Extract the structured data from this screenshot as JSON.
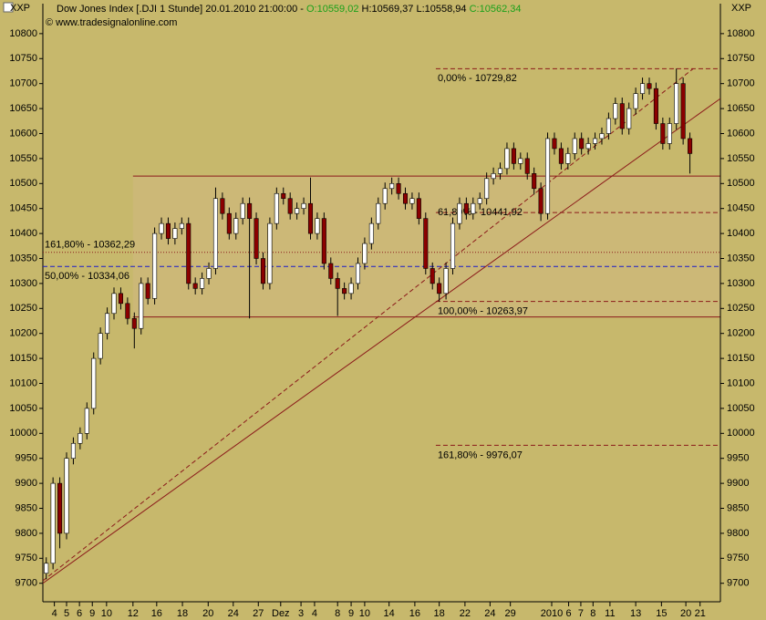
{
  "chart_data": {
    "type": "candlestick",
    "title": "Dow Jones Index [.DJI  1 Stunde] 20.01.2010 21:00:00 -",
    "header_open": "O:10559,02",
    "header_high_low": "H:10569,37 L:10558,94",
    "header_close": "C:10562,34",
    "copyright": "© www.tradesignalonline.com",
    "axis_unit": "XXP",
    "up_color": "#ffffff",
    "down_color": "#8b0000",
    "x": [
      0,
      1,
      2,
      3,
      4,
      5,
      6,
      7,
      8,
      9,
      10,
      11,
      12,
      13,
      14,
      15,
      16,
      17,
      18,
      19,
      20,
      21,
      22,
      23,
      24,
      25,
      26,
      27,
      28,
      29,
      30,
      31,
      32,
      33,
      34,
      35,
      36,
      37,
      38,
      39,
      40,
      41,
      42,
      43,
      44,
      45,
      46,
      47,
      48,
      49,
      50,
      51,
      52,
      53,
      54,
      55,
      56,
      57,
      58,
      59,
      60,
      61,
      62,
      63,
      64,
      65,
      66,
      67,
      68,
      69,
      70,
      71,
      72,
      73,
      74,
      75,
      76,
      77,
      78,
      79,
      80,
      81,
      82,
      83,
      84,
      85,
      86,
      87,
      88,
      89,
      90,
      91,
      92,
      93,
      94,
      95
    ],
    "open": [
      9720,
      9740,
      9900,
      9800,
      9950,
      9980,
      10000,
      10050,
      10150,
      10200,
      10240,
      10280,
      10260,
      10230,
      10210,
      10300,
      10270,
      10400,
      10420,
      10390,
      10410,
      10420,
      10300,
      10290,
      10310,
      10330,
      10470,
      10440,
      10400,
      10430,
      10460,
      10430,
      10350,
      10300,
      10420,
      10480,
      10470,
      10440,
      10450,
      10460,
      10400,
      10430,
      10340,
      10310,
      10290,
      10280,
      10300,
      10340,
      10380,
      10420,
      10460,
      10490,
      10500,
      10480,
      10460,
      10470,
      10430,
      10330,
      10300,
      10280,
      10330,
      10420,
      10460,
      10440,
      10460,
      10470,
      10510,
      10520,
      10530,
      10570,
      10540,
      10550,
      10520,
      10490,
      10440,
      10590,
      10570,
      10540,
      10560,
      10590,
      10570,
      10580,
      10590,
      10600,
      10630,
      10660,
      10610,
      10650,
      10680,
      10700,
      10690,
      10620,
      10580,
      10620,
      10700,
      10590
    ],
    "high": [
      9752,
      9912,
      9912,
      9962,
      9992,
      10012,
      10062,
      10162,
      10212,
      10252,
      10292,
      10292,
      10272,
      10242,
      10312,
      10312,
      10412,
      10432,
      10432,
      10422,
      10432,
      10432,
      10312,
      10322,
      10342,
      10492,
      10482,
      10452,
      10442,
      10472,
      10472,
      10442,
      10362,
      10432,
      10492,
      10492,
      10482,
      10462,
      10472,
      10512,
      10442,
      10442,
      10352,
      10322,
      10302,
      10312,
      10352,
      10392,
      10432,
      10472,
      10502,
      10512,
      10512,
      10492,
      10482,
      10482,
      10442,
      10342,
      10312,
      10342,
      10432,
      10472,
      10472,
      10472,
      10482,
      10522,
      10532,
      10542,
      10582,
      10582,
      10562,
      10562,
      10532,
      10502,
      10602,
      10602,
      10582,
      10572,
      10602,
      10602,
      10592,
      10602,
      10612,
      10642,
      10672,
      10672,
      10662,
      10692,
      10712,
      10712,
      10702,
      10632,
      10632,
      10730,
      10712,
      10602
    ],
    "low": [
      9708,
      9728,
      9770,
      9788,
      9938,
      9968,
      9988,
      10038,
      10138,
      10188,
      10228,
      10248,
      10218,
      10170,
      10198,
      10258,
      10258,
      10388,
      10378,
      10378,
      10398,
      10288,
      10278,
      10278,
      10298,
      10318,
      10428,
      10388,
      10388,
      10418,
      10230,
      10338,
      10288,
      10288,
      10408,
      10458,
      10428,
      10428,
      10438,
      10388,
      10388,
      10328,
      10298,
      10235,
      10268,
      10268,
      10288,
      10328,
      10368,
      10408,
      10448,
      10478,
      10468,
      10448,
      10448,
      10418,
      10318,
      10288,
      10264,
      10268,
      10318,
      10408,
      10428,
      10428,
      10448,
      10458,
      10498,
      10508,
      10518,
      10528,
      10528,
      10508,
      10478,
      10425,
      10428,
      10558,
      10528,
      10528,
      10548,
      10558,
      10558,
      10568,
      10578,
      10588,
      10618,
      10598,
      10598,
      10638,
      10668,
      10678,
      10608,
      10568,
      10568,
      10608,
      10578,
      10520
    ],
    "close": [
      9740,
      9900,
      9800,
      9950,
      9980,
      10000,
      10050,
      10150,
      10200,
      10240,
      10280,
      10260,
      10230,
      10210,
      10300,
      10270,
      10400,
      10420,
      10390,
      10410,
      10420,
      10300,
      10290,
      10310,
      10330,
      10470,
      10440,
      10400,
      10430,
      10460,
      10430,
      10350,
      10300,
      10420,
      10480,
      10470,
      10440,
      10450,
      10460,
      10400,
      10430,
      10340,
      10310,
      10290,
      10280,
      10300,
      10340,
      10380,
      10420,
      10460,
      10490,
      10500,
      10480,
      10460,
      10470,
      10430,
      10330,
      10300,
      10280,
      10330,
      10420,
      10460,
      10440,
      10460,
      10470,
      10510,
      10520,
      10530,
      10570,
      10540,
      10550,
      10520,
      10490,
      10440,
      10590,
      10570,
      10540,
      10560,
      10590,
      10570,
      10580,
      10590,
      10600,
      10630,
      10660,
      10610,
      10650,
      10680,
      10700,
      10690,
      10620,
      10580,
      10620,
      10700,
      10590,
      10560
    ],
    "xlim": [
      -0.5,
      99.5
    ],
    "ylim": [
      9663,
      10860
    ],
    "yticks": [
      9700,
      9750,
      9800,
      9850,
      9900,
      9950,
      10000,
      10050,
      10100,
      10150,
      10200,
      10250,
      10300,
      10350,
      10400,
      10450,
      10500,
      10550,
      10600,
      10650,
      10700,
      10750,
      10800
    ],
    "xticks": [
      {
        "value": 1.2,
        "label": "4"
      },
      {
        "value": 3.0,
        "label": "5"
      },
      {
        "value": 4.9,
        "label": "6"
      },
      {
        "value": 6.8,
        "label": "9"
      },
      {
        "value": 8.9,
        "label": "10"
      },
      {
        "value": 12.8,
        "label": "12"
      },
      {
        "value": 16.3,
        "label": "16"
      },
      {
        "value": 20.1,
        "label": "18"
      },
      {
        "value": 23.9,
        "label": "20"
      },
      {
        "value": 27.6,
        "label": "24"
      },
      {
        "value": 31.3,
        "label": "27"
      },
      {
        "value": 34.6,
        "label": "Dez"
      },
      {
        "value": 37.6,
        "label": "3"
      },
      {
        "value": 39.6,
        "label": "4"
      },
      {
        "value": 43.0,
        "label": "8"
      },
      {
        "value": 45.0,
        "label": "9"
      },
      {
        "value": 47.0,
        "label": "10"
      },
      {
        "value": 50.6,
        "label": "14"
      },
      {
        "value": 54.4,
        "label": "16"
      },
      {
        "value": 58.0,
        "label": "18"
      },
      {
        "value": 61.8,
        "label": "22"
      },
      {
        "value": 65.5,
        "label": "24"
      },
      {
        "value": 68.5,
        "label": "29"
      },
      {
        "value": 74.6,
        "label": "2010"
      },
      {
        "value": 77.1,
        "label": "6"
      },
      {
        "value": 78.9,
        "label": "7"
      },
      {
        "value": 80.7,
        "label": "8"
      },
      {
        "value": 83.2,
        "label": "11"
      },
      {
        "value": 87.0,
        "label": "13"
      },
      {
        "value": 90.8,
        "label": "15"
      },
      {
        "value": 94.4,
        "label": "20"
      },
      {
        "value": 96.5,
        "label": "21"
      }
    ],
    "range_box": {
      "x_start": 12.8,
      "low": 10233,
      "high": 10515,
      "color": "#8b1a1a",
      "fill": "#ccb877"
    },
    "levels": [
      {
        "value": 10729.82,
        "label": "0,00% - 10729,82",
        "x_start": 57.5,
        "color": "#8b1a1a",
        "dash": "dashed",
        "label_side": "below"
      },
      {
        "value": 10441.92,
        "label": "61,80% - 10441,92",
        "x_start": 57.5,
        "color": "#8b1a1a",
        "dash": "dashed",
        "label_side": "middle"
      },
      {
        "value": 10263.97,
        "label": "100,00% - 10263,97",
        "x_start": 57.5,
        "color": "#8b1a1a",
        "dash": "dashed",
        "label_side": "below"
      },
      {
        "value": 9976.07,
        "label": "161,80% - 9976,07",
        "x_start": 57.5,
        "color": "#8b1a1a",
        "dash": "dashed",
        "label_side": "below"
      },
      {
        "value": 10362.29,
        "label": "161,80% - 10362,29",
        "x_start": -0.5,
        "color": "#8b1a1a",
        "dash": "dotted",
        "label_side": "above"
      },
      {
        "value": 10334.06,
        "label": "50,00% - 10334,06",
        "x_start": -0.5,
        "color": "#1a1acc",
        "dash": "dashed",
        "label_side": "below"
      }
    ],
    "trendlines": [
      {
        "x": [
          -0.5,
          99.5
        ],
        "y": [
          9700,
          10670
        ],
        "color": "#8b1a1a",
        "dash": "solid"
      },
      {
        "x": [
          -0.5,
          95.5
        ],
        "y": [
          9705,
          10730
        ],
        "color": "#8b1a1a",
        "dash": "dashed"
      }
    ]
  }
}
